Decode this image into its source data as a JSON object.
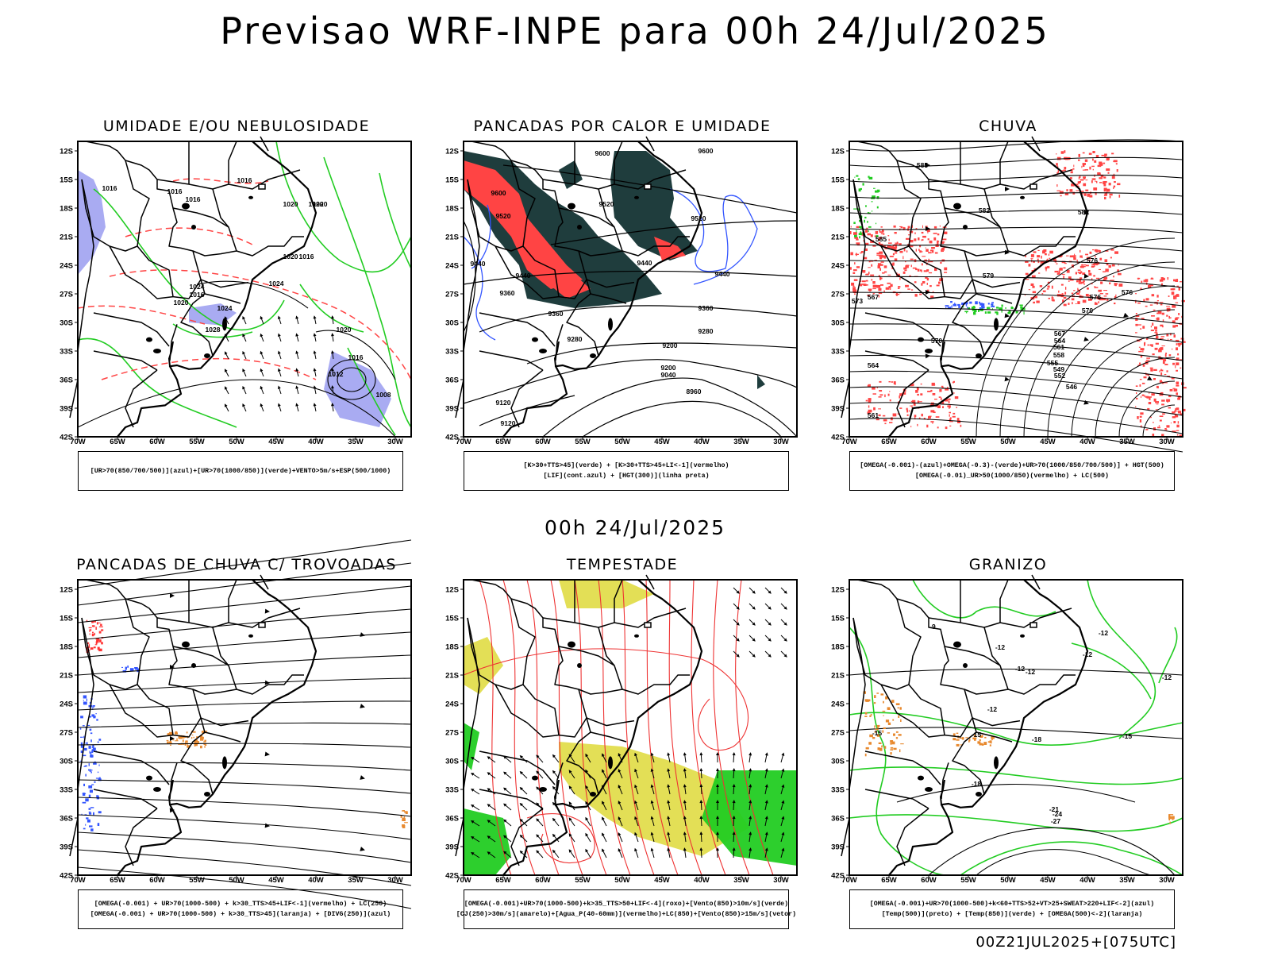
{
  "header": {
    "title": "Previsao WRF-INPE  para 00h 24/Jul/2025",
    "mid_title": "00h 24/Jul/2025",
    "footer": "00Z21JUL2025+[075UTC]"
  },
  "axes": {
    "lat_ticks": [
      "12S",
      "15S",
      "18S",
      "21S",
      "24S",
      "27S",
      "30S",
      "33S",
      "36S",
      "39S",
      "42S"
    ],
    "lon_ticks": [
      "70W",
      "65W",
      "60W",
      "55W",
      "50W",
      "45W",
      "40W",
      "35W",
      "30W"
    ]
  },
  "colors": {
    "humidity_blue": "#9a9cf0",
    "green": "#22cc22",
    "red": "#ff4444",
    "dark_teal": "#1f3d3d",
    "blue": "#3355ff",
    "orange": "#e8892e",
    "yellow": "#e0dc44"
  },
  "panels": [
    {
      "id": "umidade",
      "title": "UMIDADE E/OU NEBULOSIDADE",
      "legend": [
        "[UR>70(850/700/500)](azul)+[UR>70(1000/850)](verde)+VENTO>5m/s+ESP(500/1000)"
      ],
      "contour_labels": [
        "1016",
        "1016",
        "1016",
        "1016",
        "1020",
        "1020",
        "1020",
        "1020",
        "1024",
        "1024",
        "1016",
        "1024",
        "1020",
        "1028",
        "1012",
        "1016",
        "1020",
        "1016",
        "1008"
      ]
    },
    {
      "id": "pancadas-calor",
      "title": "PANCADAS POR CALOR E UMIDADE",
      "legend": [
        "[K>30+TTS>45](verde) + [K>30+TTS>45+LI<-1](vermelho)",
        "[LIF](cont.azul) + [HGT(300)](linha preta)"
      ],
      "contour_labels": [
        "9600",
        "9600",
        "9600",
        "9520",
        "9520",
        "9520",
        "9440",
        "9440",
        "9440",
        "9440",
        "9360",
        "9360",
        "9360",
        "9280",
        "9280",
        "9200",
        "9200",
        "9120",
        "9040",
        "9120",
        "8960"
      ]
    },
    {
      "id": "chuva",
      "title": "CHUVA",
      "legend": [
        "[OMEGA(-0.001)-(azul)+OMEGA(-0.3)-(verde)+UR>70(1000/850/700/500)] + HGT(500)",
        "[OMEGA(-0.01)_UR>50(1000/850)(vermelho) + LC(500)"
      ],
      "contour_labels": [
        "585",
        "582",
        "582",
        "585",
        "579",
        "576",
        "576",
        "576",
        "573",
        "570",
        "567",
        "564",
        "561",
        "558",
        "555",
        "552",
        "549",
        "546",
        "564",
        "561",
        "570",
        "567"
      ]
    },
    {
      "id": "pancadas-trovoadas",
      "title": "PANCADAS DE CHUVA C/ TROVOADAS",
      "legend": [
        "[OMEGA(-0.001) + UR>70(1000-500) + k>30_TTS>45+LIF<-1](vermelho) + LC(250)",
        "[OMEGA(-0.001) + UR>70(1000-500) + k>30_TTS>45](laranja) + [DIVG(250)](azul)"
      ]
    },
    {
      "id": "tempestade",
      "title": "TEMPESTADE",
      "legend": [
        "[OMEGA(-0.001)+UR>70(1000-500)+k>35_TTS>50+LIF<-4](roxo)+[Vento(850)>10m/s](verde)",
        "[CJ(250)>30m/s](amarelo)+[Agua_P(40-60mm)](vermelho)+LC(850)+[Vento(850)>15m/s](vetor)"
      ]
    },
    {
      "id": "granizo",
      "title": "GRANIZO",
      "legend": [
        "[OMEGA(-0.001)+UR>70(1000-500)+k<60+TTS>52+VT>25+SWEAT>220+LIF<-2](azul)",
        "[Temp(500)](preto) + [Temp(850)](verde) + [OMEGA(500)<-2](laranja)"
      ],
      "contour_labels": [
        "-9",
        "-12",
        "-12",
        "-12",
        "-12",
        "-12",
        "-12",
        "-15",
        "-15",
        "-18",
        "-18",
        "-21",
        "-24",
        "-27",
        "-12",
        "-15"
      ]
    }
  ]
}
